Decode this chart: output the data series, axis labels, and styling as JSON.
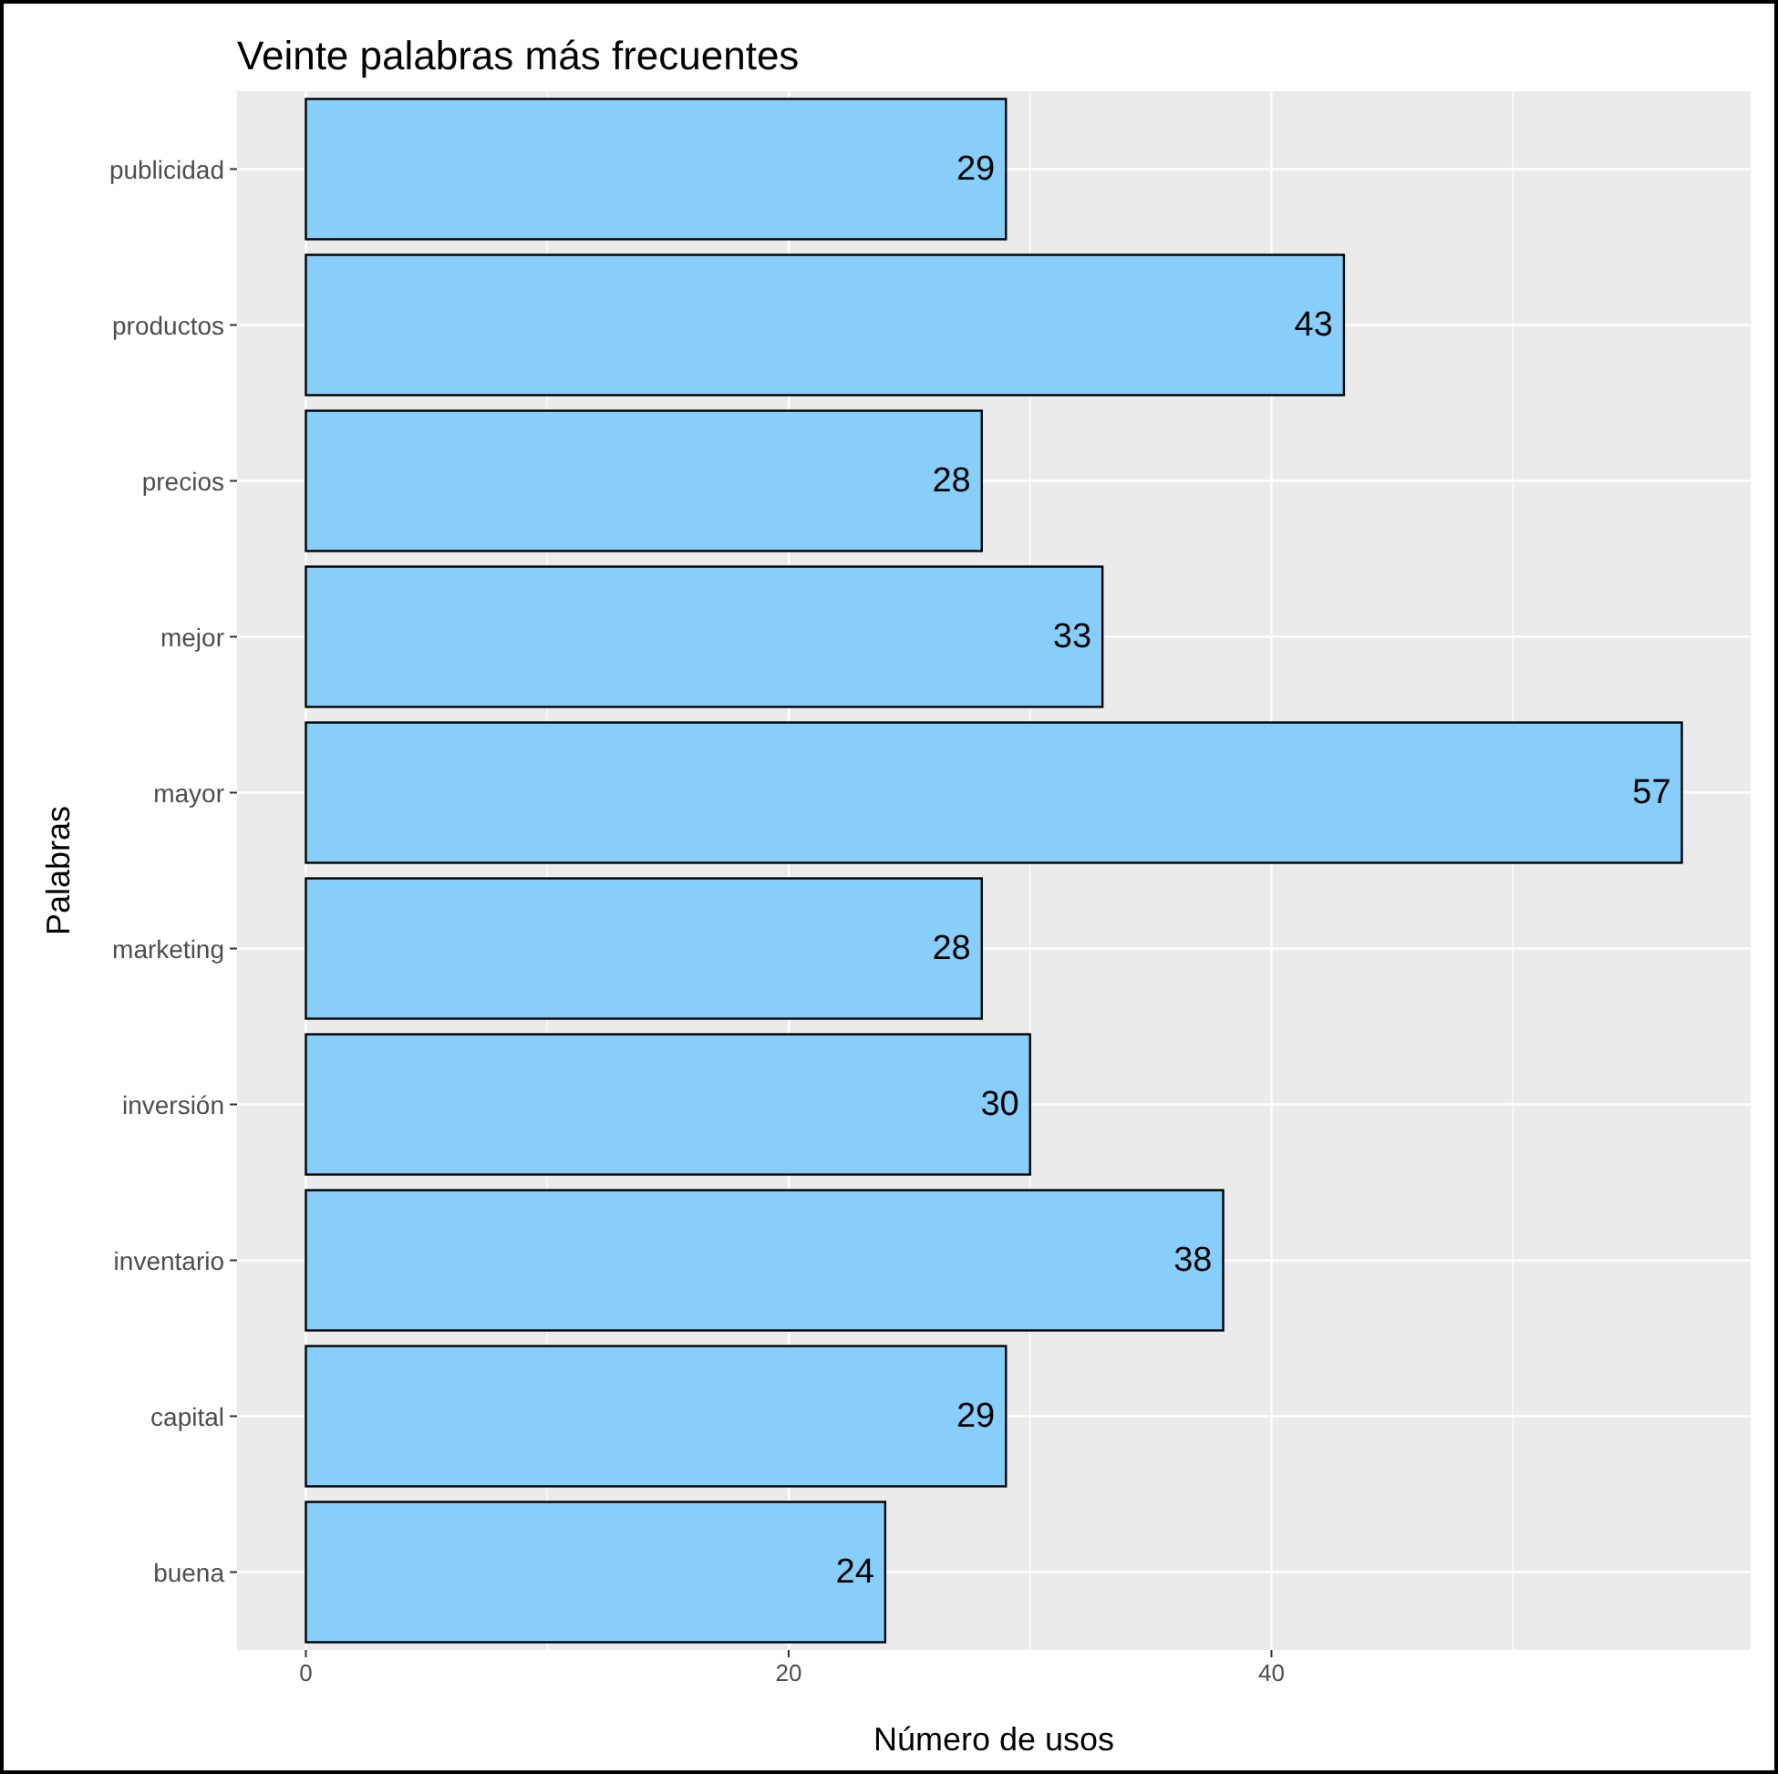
{
  "chart_data": {
    "type": "bar",
    "orientation": "horizontal",
    "title": "Veinte palabras más frecuentes",
    "xlabel": "Número de usos",
    "ylabel": "Palabras",
    "categories": [
      "publicidad",
      "productos",
      "precios",
      "mejor",
      "mayor",
      "marketing",
      "inversión",
      "inventario",
      "capital",
      "buena"
    ],
    "values": [
      29,
      43,
      28,
      33,
      57,
      28,
      30,
      38,
      29,
      24
    ],
    "color": "#87cefa",
    "data_labels": true,
    "grid": true,
    "xlim": [
      -2.85,
      59.85
    ],
    "xticks": [
      0,
      {
        "value": 10,
        "label": null
      },
      20,
      {
        "value": 30,
        "label": null
      },
      40,
      {
        "value": 50,
        "label": null
      }
    ]
  }
}
